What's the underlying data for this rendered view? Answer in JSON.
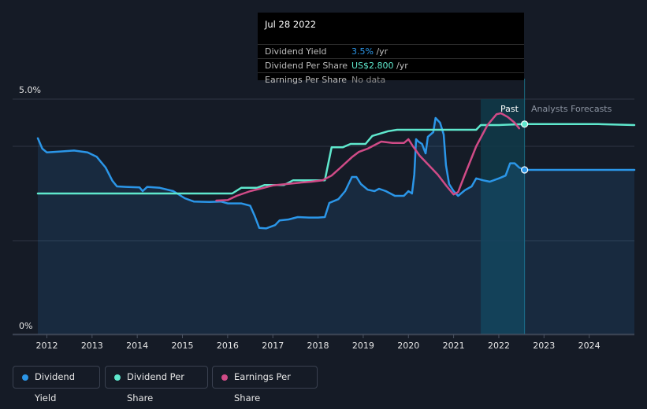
{
  "chart_data": {
    "type": "line",
    "y_axis": {
      "unit": "%",
      "min": 0,
      "max": 5.0,
      "tick_labels": [
        "5.0%",
        "0%"
      ],
      "gridlines": [
        0,
        2.0,
        4.0,
        5.0
      ]
    },
    "x_axis": {
      "tick_labels": [
        "2012",
        "2013",
        "2014",
        "2015",
        "2016",
        "2017",
        "2018",
        "2019",
        "2020",
        "2021",
        "2022",
        "2023",
        "2024"
      ],
      "range": [
        2011.8,
        2025.0
      ]
    },
    "regions": {
      "past_label": "Past",
      "forecast_label": "Analysts Forecasts",
      "past_band": [
        2021.6,
        2022.57
      ]
    },
    "series": [
      {
        "name": "Dividend Yield",
        "color": "#2b96e8",
        "fill": true,
        "points": [
          [
            2011.8,
            4.17
          ],
          [
            2011.9,
            3.95
          ],
          [
            2012.0,
            3.87
          ],
          [
            2012.3,
            3.89
          ],
          [
            2012.6,
            3.91
          ],
          [
            2012.9,
            3.87
          ],
          [
            2013.1,
            3.78
          ],
          [
            2013.3,
            3.55
          ],
          [
            2013.45,
            3.27
          ],
          [
            2013.55,
            3.15
          ],
          [
            2013.75,
            3.14
          ],
          [
            2014.05,
            3.13
          ],
          [
            2014.12,
            3.05
          ],
          [
            2014.22,
            3.14
          ],
          [
            2014.5,
            3.12
          ],
          [
            2014.8,
            3.05
          ],
          [
            2015.05,
            2.9
          ],
          [
            2015.25,
            2.83
          ],
          [
            2015.6,
            2.82
          ],
          [
            2015.85,
            2.83
          ],
          [
            2016.0,
            2.79
          ],
          [
            2016.3,
            2.79
          ],
          [
            2016.5,
            2.74
          ],
          [
            2016.6,
            2.52
          ],
          [
            2016.7,
            2.27
          ],
          [
            2016.85,
            2.26
          ],
          [
            2017.05,
            2.33
          ],
          [
            2017.15,
            2.43
          ],
          [
            2017.35,
            2.45
          ],
          [
            2017.55,
            2.5
          ],
          [
            2017.8,
            2.49
          ],
          [
            2018.0,
            2.49
          ],
          [
            2018.15,
            2.5
          ],
          [
            2018.25,
            2.8
          ],
          [
            2018.45,
            2.88
          ],
          [
            2018.6,
            3.05
          ],
          [
            2018.75,
            3.35
          ],
          [
            2018.85,
            3.35
          ],
          [
            2018.95,
            3.2
          ],
          [
            2019.1,
            3.08
          ],
          [
            2019.25,
            3.05
          ],
          [
            2019.35,
            3.1
          ],
          [
            2019.5,
            3.05
          ],
          [
            2019.7,
            2.95
          ],
          [
            2019.9,
            2.95
          ],
          [
            2020.0,
            3.05
          ],
          [
            2020.08,
            3.0
          ],
          [
            2020.13,
            3.4
          ],
          [
            2020.17,
            4.15
          ],
          [
            2020.22,
            4.1
          ],
          [
            2020.3,
            4.05
          ],
          [
            2020.38,
            3.85
          ],
          [
            2020.43,
            4.2
          ],
          [
            2020.55,
            4.3
          ],
          [
            2020.6,
            4.6
          ],
          [
            2020.7,
            4.5
          ],
          [
            2020.78,
            4.25
          ],
          [
            2020.83,
            3.6
          ],
          [
            2020.9,
            3.2
          ],
          [
            2021.0,
            3.05
          ],
          [
            2021.1,
            2.95
          ],
          [
            2021.25,
            3.07
          ],
          [
            2021.4,
            3.15
          ],
          [
            2021.5,
            3.32
          ],
          [
            2021.65,
            3.28
          ],
          [
            2021.8,
            3.25
          ],
          [
            2022.0,
            3.32
          ],
          [
            2022.15,
            3.38
          ],
          [
            2022.25,
            3.64
          ],
          [
            2022.35,
            3.64
          ],
          [
            2022.45,
            3.55
          ],
          [
            2022.57,
            3.5
          ],
          [
            2023.5,
            3.5
          ],
          [
            2024.2,
            3.5
          ],
          [
            2025.0,
            3.5
          ]
        ]
      },
      {
        "name": "Dividend Per Share",
        "color": "#5fe8cd",
        "fill": false,
        "points": [
          [
            2011.8,
            3.0
          ],
          [
            2016.1,
            3.0
          ],
          [
            2016.3,
            3.12
          ],
          [
            2016.65,
            3.12
          ],
          [
            2016.82,
            3.18
          ],
          [
            2017.25,
            3.18
          ],
          [
            2017.45,
            3.28
          ],
          [
            2018.15,
            3.28
          ],
          [
            2018.3,
            3.98
          ],
          [
            2018.55,
            3.98
          ],
          [
            2018.72,
            4.05
          ],
          [
            2019.05,
            4.05
          ],
          [
            2019.2,
            4.22
          ],
          [
            2019.55,
            4.32
          ],
          [
            2019.75,
            4.35
          ],
          [
            2021.5,
            4.35
          ],
          [
            2021.6,
            4.45
          ],
          [
            2022.0,
            4.45
          ],
          [
            2022.57,
            4.47
          ],
          [
            2023.5,
            4.47
          ],
          [
            2024.2,
            4.47
          ],
          [
            2025.0,
            4.45
          ]
        ]
      },
      {
        "name": "Earnings Per Share",
        "color": "#d04b87",
        "fill": false,
        "points": [
          [
            2015.75,
            2.85
          ],
          [
            2016.0,
            2.86
          ],
          [
            2016.2,
            2.95
          ],
          [
            2016.5,
            3.05
          ],
          [
            2016.8,
            3.12
          ],
          [
            2017.0,
            3.17
          ],
          [
            2017.3,
            3.2
          ],
          [
            2017.6,
            3.23
          ],
          [
            2017.85,
            3.25
          ],
          [
            2018.1,
            3.28
          ],
          [
            2018.3,
            3.38
          ],
          [
            2018.5,
            3.55
          ],
          [
            2018.75,
            3.77
          ],
          [
            2018.9,
            3.88
          ],
          [
            2019.1,
            3.95
          ],
          [
            2019.4,
            4.1
          ],
          [
            2019.65,
            4.07
          ],
          [
            2019.9,
            4.07
          ],
          [
            2020.0,
            4.15
          ],
          [
            2020.1,
            4.0
          ],
          [
            2020.25,
            3.8
          ],
          [
            2020.45,
            3.6
          ],
          [
            2020.65,
            3.4
          ],
          [
            2020.85,
            3.15
          ],
          [
            2021.0,
            2.98
          ],
          [
            2021.1,
            3.03
          ],
          [
            2021.25,
            3.4
          ],
          [
            2021.5,
            4.0
          ],
          [
            2021.75,
            4.45
          ],
          [
            2021.95,
            4.68
          ],
          [
            2022.05,
            4.7
          ],
          [
            2022.2,
            4.62
          ],
          [
            2022.35,
            4.5
          ],
          [
            2022.45,
            4.38
          ]
        ]
      }
    ],
    "highlight_markers": [
      {
        "series": "Dividend Per Share",
        "x": 2022.57,
        "y": 4.47
      },
      {
        "series": "Dividend Yield",
        "x": 2022.57,
        "y": 3.5
      }
    ],
    "tooltip": {
      "date": "Jul 28 2022",
      "rows": [
        {
          "label": "Dividend Yield",
          "value": "3.5%",
          "unit": " /yr",
          "color": "#2b96e8"
        },
        {
          "label": "Dividend Per Share",
          "value": "US$2.800",
          "unit": " /yr",
          "color": "#5fe8cd"
        },
        {
          "label": "Earnings Per Share",
          "value": "No data",
          "unit": "",
          "color": "#8a8a8a"
        }
      ]
    },
    "legend": [
      {
        "label": "Dividend Yield",
        "color": "#2b96e8"
      },
      {
        "label": "Dividend Per Share",
        "color": "#5fe8cd"
      },
      {
        "label": "Earnings Per Share",
        "color": "#d04b87"
      }
    ]
  }
}
